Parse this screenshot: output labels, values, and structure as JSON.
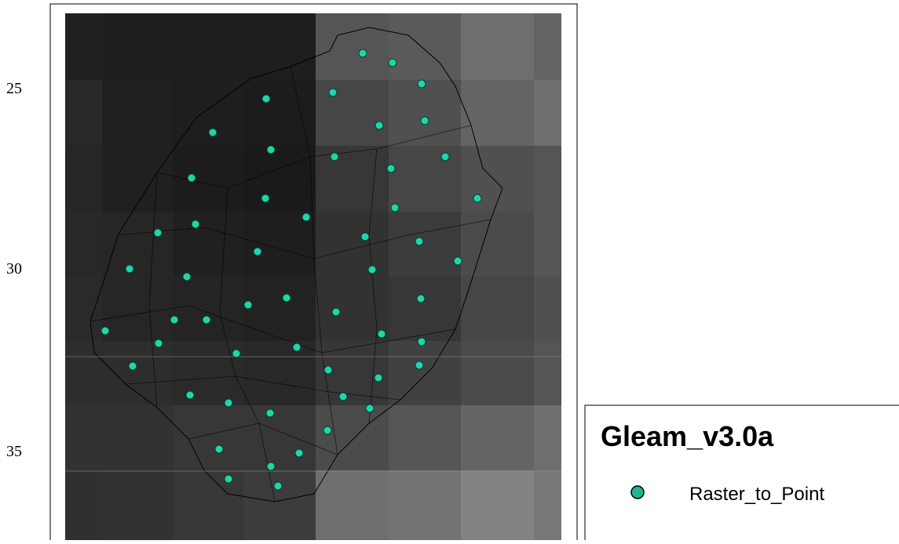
{
  "axis": {
    "labels": [
      "25",
      "30",
      "35"
    ]
  },
  "legend": {
    "title": "Gleam_v3.0a",
    "items": [
      "Raster_to_Point"
    ]
  }
}
